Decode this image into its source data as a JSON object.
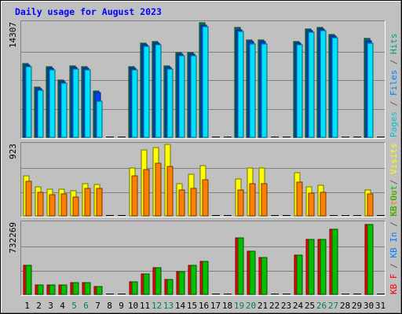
{
  "chart_data": {
    "type": "bar",
    "title": "Daily usage for August 2023",
    "categories": [
      "1",
      "2",
      "3",
      "4",
      "5",
      "6",
      "7",
      "8",
      "9",
      "10",
      "11",
      "12",
      "13",
      "14",
      "15",
      "16",
      "17",
      "18",
      "19",
      "20",
      "21",
      "22",
      "23",
      "24",
      "25",
      "26",
      "27",
      "28",
      "29",
      "30",
      "31"
    ],
    "weekend_days": [
      "5",
      "6",
      "12",
      "13",
      "19",
      "20",
      "26",
      "27"
    ],
    "panels": [
      {
        "key": "hits_files_pages",
        "max_label": "14307",
        "max_value": 14307,
        "legend": [
          {
            "text": "Pages",
            "color": "#00c0e0"
          },
          {
            "text": " / ",
            "color": "#606060"
          },
          {
            "text": "Files",
            "color": "#0080ff"
          },
          {
            "text": " / ",
            "color": "#606060"
          },
          {
            "text": "Hits",
            "color": "#00a080"
          }
        ],
        "series": [
          {
            "name": "Hits",
            "color": "#00805c",
            "values": [
              9200,
              6300,
              8800,
              7200,
              8900,
              8800,
              5800,
              null,
              null,
              8800,
              11800,
              12000,
              8900,
              10600,
              10600,
              14307,
              null,
              null,
              13700,
              12200,
              12200,
              null,
              null,
              12000,
              13500,
              13700,
              12800,
              null,
              null,
              12300,
              null
            ]
          },
          {
            "name": "Files",
            "color": "#0040ff",
            "values": [
              9000,
              6100,
              8600,
              7000,
              8700,
              8600,
              5600,
              null,
              null,
              8600,
              11600,
              11800,
              8700,
              10400,
              10400,
              14000,
              null,
              null,
              13400,
              12000,
              12000,
              null,
              null,
              11800,
              13300,
              13500,
              12600,
              null,
              null,
              12100,
              null
            ]
          },
          {
            "name": "Pages",
            "color": "#00e0ff",
            "values": [
              8800,
              5900,
              8400,
              6800,
              8500,
              8400,
              4500,
              null,
              null,
              8400,
              11400,
              11600,
              8500,
              10200,
              10200,
              13800,
              null,
              null,
              13200,
              11700,
              11700,
              null,
              null,
              11600,
              13100,
              13300,
              12400,
              null,
              null,
              11800,
              null
            ]
          }
        ]
      },
      {
        "key": "visits_sites",
        "max_label": "923",
        "max_value": 923,
        "legend": [
          {
            "text": "Sites",
            "color": "#ff8000"
          },
          {
            "text": " / ",
            "color": "#606060"
          },
          {
            "text": "Visits",
            "color": "#ffff00"
          }
        ],
        "series": [
          {
            "name": "Visits",
            "color": "#ffff00",
            "values": [
              520,
              380,
              340,
              340,
              320,
              420,
              410,
              null,
              null,
              620,
              850,
              880,
              920,
              420,
              540,
              650,
              null,
              null,
              480,
              620,
              620,
              null,
              null,
              560,
              380,
              400,
              null,
              null,
              null,
              330,
              null
            ]
          },
          {
            "name": "Sites",
            "color": "#ff8000",
            "values": [
              450,
              300,
              270,
              280,
              240,
              350,
              350,
              null,
              null,
              520,
              600,
              680,
              640,
              330,
              360,
              470,
              null,
              null,
              330,
              420,
              420,
              null,
              null,
              440,
              290,
              300,
              null,
              null,
              null,
              280,
              null
            ]
          }
        ]
      },
      {
        "key": "kbin_kbout_kbf",
        "max_label": "732269",
        "max_value": 732269,
        "legend": [
          {
            "text": "KB F",
            "color": "#ff0000"
          },
          {
            "text": " / ",
            "color": "#606060"
          },
          {
            "text": "KB In",
            "color": "#0080ff"
          },
          {
            "text": " / ",
            "color": "#606060"
          },
          {
            "text": "KB Out",
            "color": "#00c000"
          }
        ],
        "series": [
          {
            "name": "KB F",
            "color": "#ff0000",
            "values": [
              300000,
              100000,
              100000,
              100000,
              120000,
              120000,
              80000,
              null,
              null,
              130000,
              210000,
              270000,
              150000,
              230000,
              300000,
              340000,
              null,
              null,
              580000,
              440000,
              380000,
              null,
              null,
              400000,
              560000,
              560000,
              670000,
              null,
              null,
              720000,
              null
            ]
          },
          {
            "name": "KB Out",
            "color": "#00c000",
            "values": [
              300000,
              100000,
              100000,
              100000,
              120000,
              120000,
              80000,
              null,
              null,
              130000,
              210000,
              270000,
              150000,
              230000,
              300000,
              340000,
              null,
              null,
              580000,
              440000,
              380000,
              null,
              null,
              400000,
              560000,
              560000,
              670000,
              null,
              null,
              720000,
              null
            ]
          }
        ]
      }
    ]
  }
}
